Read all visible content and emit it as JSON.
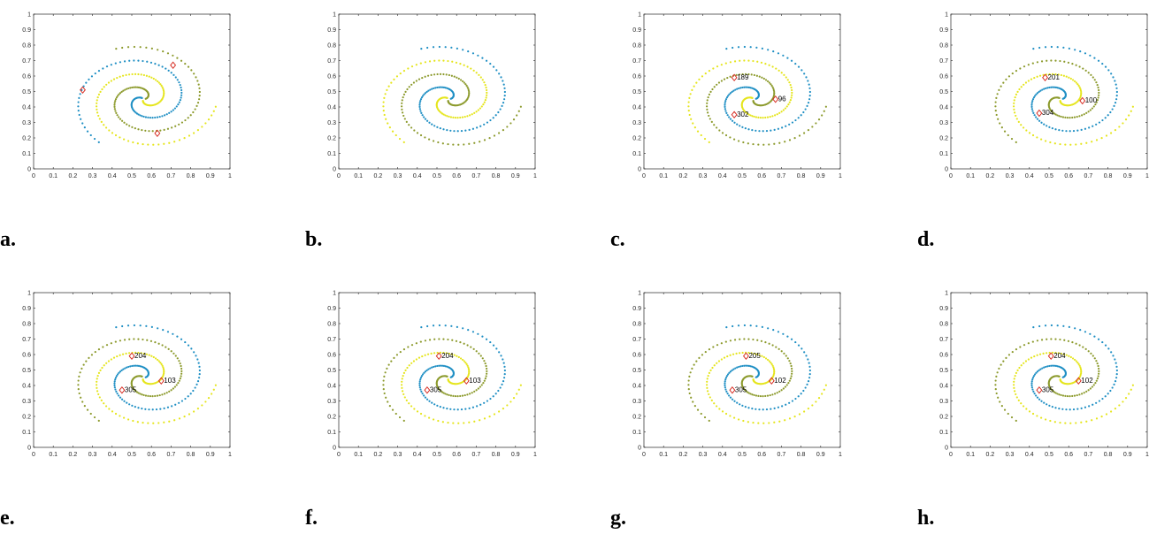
{
  "colors": {
    "cluster_blue": "#1f8fc4",
    "cluster_olive": "#8c9a2c",
    "cluster_yellow": "#e5e51c",
    "center_marker": "#d6281e",
    "axes": "#262626"
  },
  "axis_tick_labels": [
    "0",
    "0.1",
    "0.2",
    "0.3",
    "0.4",
    "0.5",
    "0.6",
    "0.7",
    "0.8",
    "0.9",
    "1"
  ],
  "chart_data": [
    {
      "panel": "a.",
      "type": "scatter",
      "xlim": [
        0,
        1
      ],
      "ylim": [
        0,
        1
      ],
      "spiral_coloring": [
        "olive",
        "blue",
        "yellow"
      ],
      "centers": [
        {
          "x": 0.25,
          "y": 0.51,
          "label": ""
        },
        {
          "x": 0.71,
          "y": 0.67,
          "label": ""
        },
        {
          "x": 0.63,
          "y": 0.23,
          "label": ""
        }
      ]
    },
    {
      "panel": "b.",
      "type": "scatter",
      "xlim": [
        0,
        1
      ],
      "ylim": [
        0,
        1
      ],
      "spiral_coloring": [
        "blue",
        "yellow",
        "olive"
      ],
      "centers": []
    },
    {
      "panel": "c.",
      "type": "scatter",
      "xlim": [
        0,
        1
      ],
      "ylim": [
        0,
        1
      ],
      "spiral_coloring": [
        "blue",
        "yellow",
        "olive"
      ],
      "centers": [
        {
          "x": 0.46,
          "y": 0.59,
          "label": "189"
        },
        {
          "x": 0.67,
          "y": 0.45,
          "label": "96"
        },
        {
          "x": 0.46,
          "y": 0.35,
          "label": "302"
        }
      ]
    },
    {
      "panel": "d.",
      "type": "scatter",
      "xlim": [
        0,
        1
      ],
      "ylim": [
        0,
        1
      ],
      "spiral_coloring": [
        "blue",
        "olive",
        "yellow"
      ],
      "centers": [
        {
          "x": 0.48,
          "y": 0.59,
          "label": "201"
        },
        {
          "x": 0.67,
          "y": 0.44,
          "label": "100"
        },
        {
          "x": 0.45,
          "y": 0.36,
          "label": "304"
        }
      ]
    },
    {
      "panel": "e.",
      "type": "scatter",
      "xlim": [
        0,
        1
      ],
      "ylim": [
        0,
        1
      ],
      "spiral_coloring": [
        "blue",
        "olive",
        "yellow"
      ],
      "centers": [
        {
          "x": 0.5,
          "y": 0.59,
          "label": "204"
        },
        {
          "x": 0.65,
          "y": 0.43,
          "label": "103"
        },
        {
          "x": 0.45,
          "y": 0.37,
          "label": "305"
        }
      ]
    },
    {
      "panel": "f.",
      "type": "scatter",
      "xlim": [
        0,
        1
      ],
      "ylim": [
        0,
        1
      ],
      "spiral_coloring": [
        "blue",
        "olive",
        "yellow"
      ],
      "centers": [
        {
          "x": 0.51,
          "y": 0.59,
          "label": "204"
        },
        {
          "x": 0.65,
          "y": 0.43,
          "label": "103"
        },
        {
          "x": 0.45,
          "y": 0.37,
          "label": "305"
        }
      ]
    },
    {
      "panel": "g.",
      "type": "scatter",
      "xlim": [
        0,
        1
      ],
      "ylim": [
        0,
        1
      ],
      "spiral_coloring": [
        "blue",
        "olive",
        "yellow"
      ],
      "centers": [
        {
          "x": 0.52,
          "y": 0.59,
          "label": "205"
        },
        {
          "x": 0.65,
          "y": 0.43,
          "label": "102"
        },
        {
          "x": 0.45,
          "y": 0.37,
          "label": "305"
        }
      ]
    },
    {
      "panel": "h.",
      "type": "scatter",
      "xlim": [
        0,
        1
      ],
      "ylim": [
        0,
        1
      ],
      "spiral_coloring": [
        "blue",
        "olive",
        "yellow"
      ],
      "centers": [
        {
          "x": 0.51,
          "y": 0.59,
          "label": "204"
        },
        {
          "x": 0.65,
          "y": 0.43,
          "label": "102"
        },
        {
          "x": 0.45,
          "y": 0.37,
          "label": "305"
        }
      ]
    }
  ]
}
